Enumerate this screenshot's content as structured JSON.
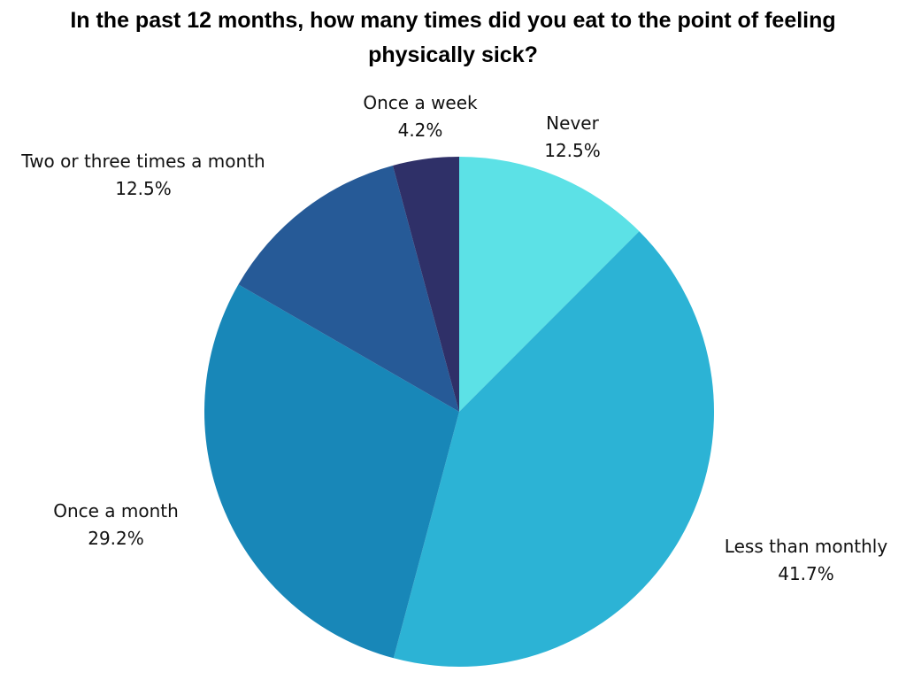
{
  "chart_data": {
    "type": "pie",
    "title_line1": "In the past 12 months, how many times did you eat to the point of feeling",
    "title_line2": "physically sick?",
    "slices": [
      {
        "label": "Never",
        "value": 12.5,
        "percent_text": "12.5%",
        "color": "#5ce1e6"
      },
      {
        "label": "Less than monthly",
        "value": 41.7,
        "percent_text": "41.7%",
        "color": "#2cb3d5"
      },
      {
        "label": "Once a month",
        "value": 29.2,
        "percent_text": "29.2%",
        "color": "#1887b8"
      },
      {
        "label": "Two or three times a month",
        "value": 12.5,
        "percent_text": "12.5%",
        "color": "#265a97"
      },
      {
        "label": "Once a week",
        "value": 4.2,
        "percent_text": "4.2%",
        "color": "#2f3068"
      }
    ]
  }
}
